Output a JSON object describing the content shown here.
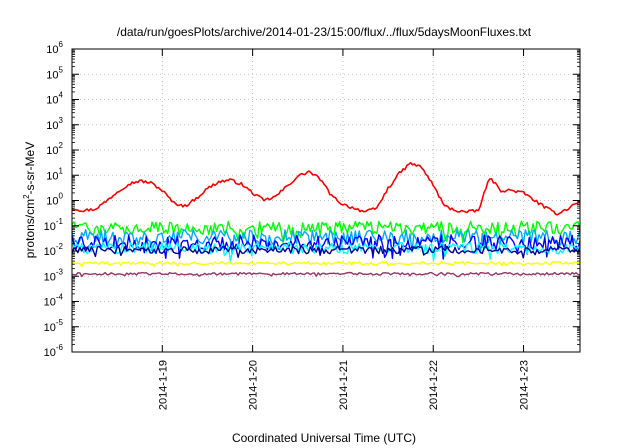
{
  "chart_data": {
    "type": "line",
    "title": "/data/run/goesPlots/archive/2014-01-23/15:00/flux/../flux/5daysMoonFluxes.txt",
    "xlabel": "Coordinated Universal Time (UTC)",
    "ylabel_parts": [
      "protons/cm",
      "2",
      "-s-sr-MeV"
    ],
    "y_scale": "log",
    "ylim": [
      1e-06,
      1000000.0
    ],
    "xlim": [
      "2014-01-18 00:00",
      "2014-01-23 15:00"
    ],
    "grid": true,
    "y_ticks": [
      {
        "base": "10",
        "exp": "-6"
      },
      {
        "base": "10",
        "exp": "-5"
      },
      {
        "base": "10",
        "exp": "-4"
      },
      {
        "base": "10",
        "exp": "-3"
      },
      {
        "base": "10",
        "exp": "-2"
      },
      {
        "base": "10",
        "exp": "-1"
      },
      {
        "base": "10",
        "exp": "0"
      },
      {
        "base": "10",
        "exp": "1"
      },
      {
        "base": "10",
        "exp": "2"
      },
      {
        "base": "10",
        "exp": "3"
      },
      {
        "base": "10",
        "exp": "4"
      },
      {
        "base": "10",
        "exp": "5"
      },
      {
        "base": "10",
        "exp": "6"
      }
    ],
    "x_ticks": [
      {
        "label": "2014-1-19",
        "date": "2014-01-19"
      },
      {
        "label": "2014-1-20",
        "date": "2014-01-20"
      },
      {
        "label": "2014-1-21",
        "date": "2014-01-21"
      },
      {
        "label": "2014-1-22",
        "date": "2014-01-22"
      },
      {
        "label": "2014-1-23",
        "date": "2014-01-23"
      }
    ],
    "series": [
      {
        "color": "#ff0000",
        "x": [
          "2014-01-18 00:00",
          "2014-01-18 03:00",
          "2014-01-18 06:00",
          "2014-01-18 09:00",
          "2014-01-18 12:00",
          "2014-01-18 15:00",
          "2014-01-18 18:00",
          "2014-01-18 21:00",
          "2014-01-19 00:00",
          "2014-01-19 03:00",
          "2014-01-19 06:00",
          "2014-01-19 09:00",
          "2014-01-19 12:00",
          "2014-01-19 15:00",
          "2014-01-19 18:00",
          "2014-01-19 21:00",
          "2014-01-20 00:00",
          "2014-01-20 03:00",
          "2014-01-20 06:00",
          "2014-01-20 09:00",
          "2014-01-20 12:00",
          "2014-01-20 15:00",
          "2014-01-20 18:00",
          "2014-01-20 21:00",
          "2014-01-21 00:00",
          "2014-01-21 03:00",
          "2014-01-21 06:00",
          "2014-01-21 09:00",
          "2014-01-21 12:00",
          "2014-01-21 15:00",
          "2014-01-21 18:00",
          "2014-01-21 21:00",
          "2014-01-22 00:00",
          "2014-01-22 03:00",
          "2014-01-22 06:00",
          "2014-01-22 09:00",
          "2014-01-22 12:00",
          "2014-01-22 15:00",
          "2014-01-22 18:00",
          "2014-01-22 21:00",
          "2014-01-23 00:00",
          "2014-01-23 03:00",
          "2014-01-23 06:00",
          "2014-01-23 09:00",
          "2014-01-23 12:00",
          "2014-01-23 15:00"
        ],
        "values": [
          0.5,
          0.4,
          0.45,
          0.9,
          2.2,
          4.5,
          6,
          5,
          2.5,
          0.8,
          0.6,
          1.2,
          3,
          5.5,
          6.5,
          4.5,
          2,
          1,
          1.4,
          3.5,
          9,
          14,
          7,
          1.5,
          0.7,
          0.5,
          0.35,
          0.5,
          3,
          12,
          30,
          20,
          4,
          0.6,
          0.4,
          0.35,
          0.4,
          8,
          2.5,
          2.5,
          2,
          1,
          0.5,
          0.3,
          0.5,
          1
        ]
      },
      {
        "color": "#00ff00",
        "base": 0.08,
        "jitter": 0.55
      },
      {
        "color": "#00aaff",
        "base": 0.035,
        "jitter": 0.6
      },
      {
        "color": "#0000ff",
        "base": 0.022,
        "jitter": 0.6
      },
      {
        "color": "#00ffff",
        "base": 0.013,
        "jitter": 0.45
      },
      {
        "color": "#000099",
        "base": 0.011,
        "jitter": 0.3
      },
      {
        "color": "#ffff00",
        "base": 0.0033,
        "jitter": 0.12
      },
      {
        "color": "#993366",
        "base": 0.00125,
        "jitter": 0.1
      }
    ]
  }
}
